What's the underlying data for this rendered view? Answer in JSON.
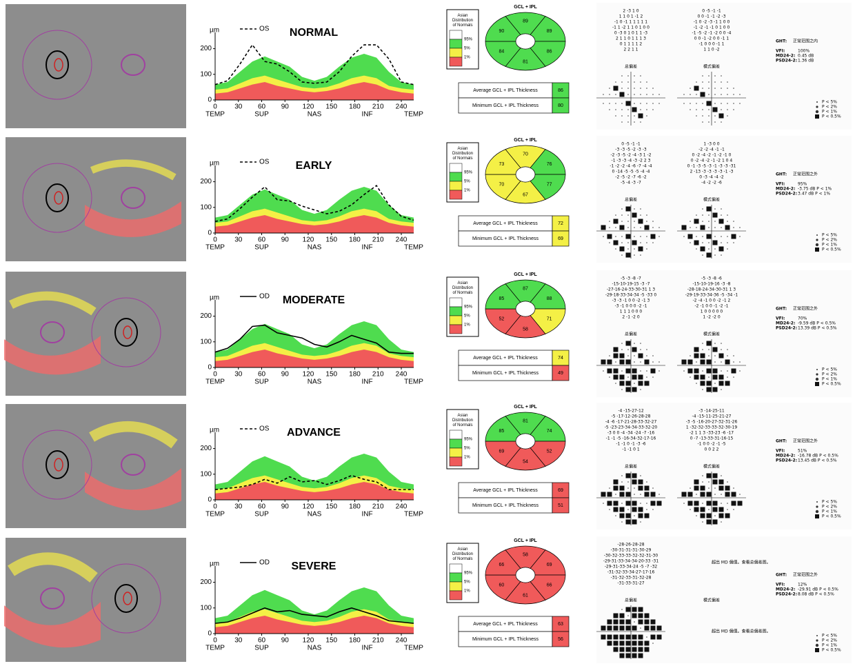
{
  "tsnit_xlim": [
    0,
    256
  ],
  "tsnit_ylim": [
    0,
    250
  ],
  "tsnit_yticks": [
    0,
    100,
    200
  ],
  "tsnit_xticks": [
    0,
    30,
    60,
    90,
    120,
    150,
    180,
    210,
    240
  ],
  "tsnit_regions": [
    "TEMP",
    "SUP",
    "NAS",
    "INF",
    "TEMP"
  ],
  "tsnit_unit": "µm",
  "tsnit_x": [
    0,
    16,
    32,
    48,
    64,
    80,
    96,
    112,
    128,
    144,
    160,
    176,
    192,
    208,
    224,
    240,
    256
  ],
  "tsnit_norms": {
    "p1": [
      25,
      30,
      45,
      60,
      70,
      55,
      45,
      35,
      30,
      35,
      45,
      60,
      70,
      60,
      40,
      30,
      25
    ],
    "p5": [
      40,
      45,
      65,
      85,
      95,
      80,
      65,
      50,
      45,
      50,
      65,
      85,
      95,
      85,
      55,
      45,
      40
    ],
    "p95": [
      60,
      70,
      110,
      150,
      170,
      150,
      130,
      90,
      75,
      90,
      130,
      165,
      180,
      165,
      110,
      70,
      60
    ]
  },
  "gcl_title": "GCL + IPL",
  "norm_legend": {
    "title": "Asian Distribution of Normals",
    "levels": [
      "95%",
      "5%",
      "1%"
    ],
    "colors": [
      "#ffffff",
      "#4fdc4f",
      "#f4f046",
      "#f05a5a"
    ]
  },
  "avg_label": "Average GCL + IPL Thickness",
  "min_label": "Minimum GCL + IPL Thickness",
  "vf_labels": {
    "ght": "GHT:",
    "vfi": "VFI:",
    "md": "MD24-2:",
    "psd": "PSD24-2:",
    "td": "总偏差",
    "pd": "模式偏差"
  },
  "p_legend": [
    "P < 5%",
    "P < 2%",
    "P < 1%",
    "P < 0.5%"
  ],
  "rows": [
    {
      "stage": "NORMAL",
      "eye": "OS",
      "tsnit": [
        60,
        75,
        140,
        215,
        150,
        140,
        110,
        70,
        65,
        70,
        110,
        170,
        215,
        215,
        160,
        70,
        60
      ],
      "sectors": [
        89,
        89,
        86,
        81,
        84,
        90
      ],
      "sector_colors": [
        "#4fdc4f",
        "#4fdc4f",
        "#4fdc4f",
        "#4fdc4f",
        "#4fdc4f",
        "#4fdc4f"
      ],
      "avg": 86,
      "avg_color": "#4fdc4f",
      "min": 80,
      "min_color": "#4fdc4f",
      "ght": "正常范围之内",
      "vfi": "100%",
      "md": "0.45 dB",
      "psd": "1.36 dB",
      "td_grid": [
        "2 -3 1 0",
        "1 1 0 1 -1 2",
        "-1 0 -1 1 1 1 1 1",
        "-1 1 -2 1 1 0 1 0 0",
        "0 -3 0 1 0 1 1 -3",
        "2 1 1 0 1 1 1 3",
        "0 1 1 1 1 2",
        "2 2 1 1"
      ],
      "pd_grid": [
        "0 -5 -1 -1",
        "0 0 -1 -1 -2 -3",
        "-1 0 -2 -3 -1 1 0 0",
        "-1 -2 -1 -1 0 1 0 0",
        "-1 -5 -2 -1 -2 0 0 -4",
        "0 0 -1 -2 0 0 -1 1",
        "-1 0 0 0 -1 1",
        "1 1 0 -2"
      ]
    },
    {
      "stage": "EARLY",
      "eye": "OS",
      "tsnit": [
        45,
        55,
        95,
        140,
        180,
        130,
        125,
        105,
        90,
        75,
        85,
        110,
        150,
        185,
        110,
        65,
        50
      ],
      "sectors": [
        70,
        76,
        77,
        67,
        70,
        73
      ],
      "sector_colors": [
        "#f4f046",
        "#4fdc4f",
        "#4fdc4f",
        "#f4f046",
        "#f4f046",
        "#f4f046"
      ],
      "avg": 72,
      "avg_color": "#f4f046",
      "min": 69,
      "min_color": "#f4f046",
      "ght": "正常范围之外",
      "vfi": "95%",
      "md": "-3.75 dB P < 1%",
      "psd": "3.47 dB P < 1%",
      "td_grid": [
        "0 -5 -1 -1",
        "-3 -3 -5 -2 -3 -3",
        "-2 -3 -5 -2 -4 -3 1 -2",
        "-1 -3 -3 -4 -3 -2 2 3",
        "-1 -2 -2 -4 -6 -7 -4 -4",
        "0 -14 -5 -5 -5 -4 -4",
        "-2 -5 -2 -7 -6 -2",
        "-5 -4 -3 -7"
      ],
      "pd_grid": [
        "1 -3 0 0",
        "-2 -2 -4 -1 -1",
        "0 -2 -4 -2 -1 -2 -1 0",
        "0 -2 -4 -2 -1 -2 1 0 4",
        "0 -1 -3 -5 -3 -1 -3 -3 -31",
        "2 -13 -3 -3 -3 -3 -1 -3",
        "0 -3 -4 -4 -2",
        "-4 -2 -2 -6"
      ]
    },
    {
      "stage": "MODERATE",
      "eye": "OD",
      "tsnit": [
        60,
        75,
        110,
        160,
        165,
        135,
        125,
        115,
        90,
        80,
        100,
        125,
        110,
        95,
        60,
        55,
        55
      ],
      "sectors": [
        87,
        88,
        71,
        58,
        52,
        85
      ],
      "sector_colors": [
        "#4fdc4f",
        "#4fdc4f",
        "#f4f046",
        "#f05a5a",
        "#f05a5a",
        "#4fdc4f"
      ],
      "avg": 74,
      "avg_color": "#f4f046",
      "min": 49,
      "min_color": "#f05a5a",
      "ght": "正常范围之外",
      "vfi": "70%",
      "md": "-9.59 dB P < 0.5%",
      "psd": "13.39 dB P < 0.5%",
      "td_grid": [
        "-5 -3 -8 -7",
        "-15-10-19-15 -3 -7",
        "-27-16-24-33-30-31 1 3",
        "-29-18-33-34-34 -5 -33 0",
        "-3 -3 -1 0 0 -2 -1 3",
        "-3 -1 0 0 0 -2 -1",
        "1 1 1 0 0 0",
        "2 -1 -2 0"
      ],
      "pd_grid": [
        "-5 -3 -8 -6",
        "-15-10-19-16 -3 -8",
        "-28-18-24-34-30-31 1 3",
        "-29-19-33-34-36 -5 -34 -1",
        "-2 -4 -1 0 0 -2 -1 2",
        "-2 -1 0 0 -1 -2 -1",
        "1 0 0 0 0 0",
        "1 -2 -2 0"
      ]
    },
    {
      "stage": "ADVANCE",
      "eye": "OS",
      "tsnit": [
        40,
        45,
        50,
        60,
        80,
        65,
        90,
        70,
        75,
        60,
        75,
        95,
        80,
        70,
        40,
        40,
        40
      ],
      "sectors": [
        81,
        74,
        52,
        54,
        69,
        85
      ],
      "sector_colors": [
        "#4fdc4f",
        "#4fdc4f",
        "#f05a5a",
        "#f05a5a",
        "#f05a5a",
        "#4fdc4f"
      ],
      "avg": 69,
      "avg_color": "#f05a5a",
      "min": 51,
      "min_color": "#f05a5a",
      "ght": "正常范围之外",
      "vfi": "51%",
      "md": "-16.78 dB P < 0.5%",
      "psd": "13.45 dB P < 0.5%",
      "td_grid": [
        "-4 -15-27-12",
        "-5 -17-12-26-28-28",
        "-4 -6 -17-21-28-33-32-27",
        "-5 -23-23-34-34-33-32-20",
        "-3 0 0 -4 -34 -24 -7 -16",
        "-1 -1 -5 -16-34-32-17-16",
        "-1 -1 0 -1 -3 -6",
        "-1 -1 0 1"
      ],
      "pd_grid": [
        "-3 -14-25-11",
        "-4 -15-11-25-21-27",
        "-3 -5 -16-20-27-32-31-26",
        "1 -32-32-33-33-32-30-19",
        "-2 1 1 3 -33-23 -6 -17",
        "0 -7 -13-33-31-16-15",
        "-1 0 0 -2 -1 -5",
        "0 0 2 2"
      ]
    },
    {
      "stage": "SEVERE",
      "eye": "OD",
      "tsnit": [
        40,
        45,
        60,
        80,
        100,
        85,
        90,
        75,
        70,
        65,
        85,
        100,
        85,
        70,
        50,
        45,
        40
      ],
      "sectors": [
        58,
        69,
        66,
        61,
        60,
        66
      ],
      "sector_colors": [
        "#f05a5a",
        "#f05a5a",
        "#f05a5a",
        "#f05a5a",
        "#f05a5a",
        "#f05a5a"
      ],
      "avg": 63,
      "avg_color": "#f05a5a",
      "min": 56,
      "min_color": "#f05a5a",
      "ght": "正常范围之外",
      "vfi": "12%",
      "md": "-29.91 dB P < 0.5%",
      "psd": "8.08 dB P < 0.5%",
      "td_grid": [
        "-28-26-28-28",
        "-30-31-31-31-30-29",
        "-30-32-33-33-32-32-31-30",
        "-29-31-33-34-34-20-33 -31",
        "-29-31-33-34-24 -5 -7 -32",
        "-31-32-33-34-27-17-16",
        "-31-32-33-31-32-28",
        "-31-33-31-27"
      ],
      "pd_msg": "超出 MD 偏值。查看总偏差图。"
    }
  ]
}
